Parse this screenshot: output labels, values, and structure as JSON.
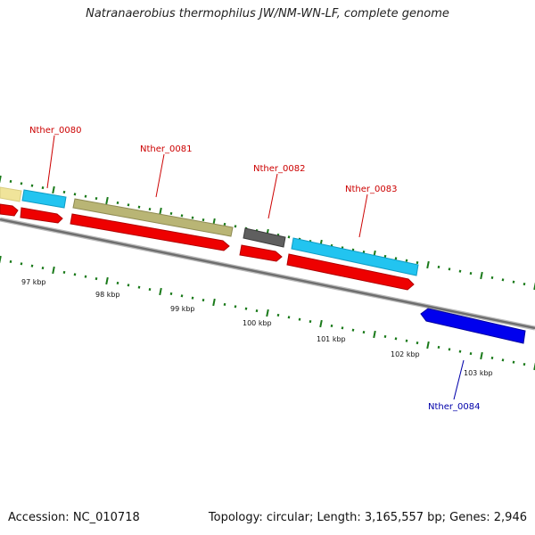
{
  "header": {
    "title": "Natranaerobius thermophilus JW/NM-WN-LF, complete genome"
  },
  "footer": {
    "accession": "Accession: NC_010718",
    "summary": "Topology: circular; Length: 3,165,557 bp; Genes: 2,946"
  },
  "genes": [
    {
      "name": "Nther_0080",
      "color": "#cc0000"
    },
    {
      "name": "Nther_0081",
      "color": "#cc0000"
    },
    {
      "name": "Nther_0082",
      "color": "#cc0000"
    },
    {
      "name": "Nther_0083",
      "color": "#cc0000"
    },
    {
      "name": "Nther_0084",
      "color": "#0000aa"
    }
  ],
  "ticks": [
    "97 kbp",
    "98 kbp",
    "99 kbp",
    "100 kbp",
    "101 kbp",
    "102 kbp",
    "103 kbp"
  ],
  "colors": {
    "backbone": "#808080",
    "cds_forward": "#ee0000",
    "cds_reverse": "#0000ee",
    "cog_yellow": "#f0e49a",
    "cog_cyan": "#22c4f0",
    "cog_khaki": "#b9b575",
    "cog_gray": "#5f5f5f",
    "tick_mark": "#1a7a1a"
  }
}
